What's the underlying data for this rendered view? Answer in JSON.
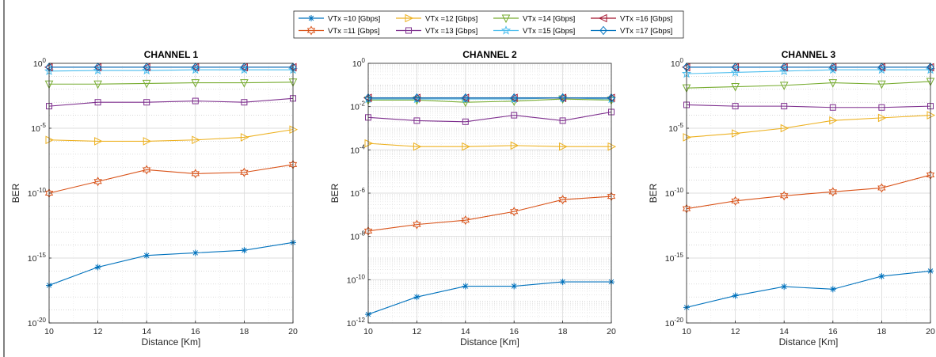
{
  "chart_data": [
    {
      "type": "line",
      "title": "CHANNEL 1",
      "xlabel": "Distance [Km]",
      "ylabel": "BER",
      "x": [
        10,
        12,
        14,
        16,
        18,
        20
      ],
      "xlim": [
        10,
        20
      ],
      "xticks": [
        10,
        12,
        14,
        16,
        18,
        20
      ],
      "ylim_log10": [
        -20,
        0
      ],
      "yticks_log10": [
        0,
        -5,
        -10,
        -15,
        -20
      ],
      "ytick_labels": [
        {
          "base": "10",
          "exp": "0"
        },
        {
          "base": "10",
          "exp": "-5"
        },
        {
          "base": "10",
          "exp": "-10"
        },
        {
          "base": "10",
          "exp": "-15"
        },
        {
          "base": "10",
          "exp": "-20"
        }
      ],
      "yscale": "log",
      "grid": true,
      "minor_grid": false,
      "series_log10": [
        {
          "name": "VTx =10 [Gbps]",
          "values": [
            -17.1,
            -15.7,
            -14.8,
            -14.6,
            -14.4,
            -13.8
          ]
        },
        {
          "name": "VTx =11 [Gbps]",
          "values": [
            -10.0,
            -9.1,
            -8.2,
            -8.5,
            -8.4,
            -7.8
          ]
        },
        {
          "name": "VTx =12 [Gbps]",
          "values": [
            -5.9,
            -6.0,
            -6.0,
            -5.9,
            -5.7,
            -5.1
          ]
        },
        {
          "name": "VTx =13 [Gbps]",
          "values": [
            -3.3,
            -3.0,
            -3.0,
            -2.9,
            -3.0,
            -2.7
          ]
        },
        {
          "name": "VTx =14 [Gbps]",
          "values": [
            -1.6,
            -1.6,
            -1.55,
            -1.5,
            -1.5,
            -1.45
          ]
        },
        {
          "name": "VTx =15 [Gbps]",
          "values": [
            -0.6,
            -0.55,
            -0.55,
            -0.5,
            -0.5,
            -0.5
          ]
        },
        {
          "name": "VTx =16 [Gbps]",
          "values": [
            -0.3,
            -0.3,
            -0.3,
            -0.3,
            -0.3,
            -0.3
          ]
        },
        {
          "name": "VTx =17 [Gbps]",
          "values": [
            -0.3,
            -0.3,
            -0.3,
            -0.3,
            -0.3,
            -0.3
          ]
        }
      ]
    },
    {
      "type": "line",
      "title": "CHANNEL 2",
      "xlabel": "Distance [Km]",
      "ylabel": "BER",
      "x": [
        10,
        12,
        14,
        16,
        18,
        20
      ],
      "xlim": [
        10,
        20
      ],
      "xticks": [
        10,
        12,
        14,
        16,
        18,
        20
      ],
      "ylim_log10": [
        -12,
        0
      ],
      "yticks_log10": [
        0,
        -2,
        -4,
        -6,
        -8,
        -10,
        -12
      ],
      "ytick_labels": [
        {
          "base": "10",
          "exp": "0"
        },
        {
          "base": "10",
          "exp": "-2"
        },
        {
          "base": "10",
          "exp": "-4"
        },
        {
          "base": "10",
          "exp": "-6"
        },
        {
          "base": "10",
          "exp": "-8"
        },
        {
          "base": "10",
          "exp": "-10"
        },
        {
          "base": "10",
          "exp": "-12"
        }
      ],
      "yscale": "log",
      "grid": true,
      "minor_grid": true,
      "series_log10": [
        {
          "name": "VTx =10 [Gbps]",
          "values": [
            -11.6,
            -10.8,
            -10.3,
            -10.3,
            -10.1,
            -10.1
          ]
        },
        {
          "name": "VTx =11 [Gbps]",
          "values": [
            -7.75,
            -7.45,
            -7.25,
            -6.85,
            -6.3,
            -6.15
          ]
        },
        {
          "name": "VTx =12 [Gbps]",
          "values": [
            -3.7,
            -3.85,
            -3.85,
            -3.8,
            -3.85,
            -3.85
          ]
        },
        {
          "name": "VTx =13 [Gbps]",
          "values": [
            -2.5,
            -2.65,
            -2.7,
            -2.4,
            -2.65,
            -2.25
          ]
        },
        {
          "name": "VTx =14 [Gbps]",
          "values": [
            -1.7,
            -1.7,
            -1.8,
            -1.75,
            -1.65,
            -1.7
          ]
        },
        {
          "name": "VTx =15 [Gbps]",
          "values": [
            -1.65,
            -1.65,
            -1.65,
            -1.65,
            -1.6,
            -1.65
          ]
        },
        {
          "name": "VTx =16 [Gbps]",
          "values": [
            -1.6,
            -1.6,
            -1.6,
            -1.6,
            -1.6,
            -1.6
          ]
        },
        {
          "name": "VTx =17 [Gbps]",
          "values": [
            -1.6,
            -1.6,
            -1.6,
            -1.6,
            -1.6,
            -1.6
          ]
        }
      ]
    },
    {
      "type": "line",
      "title": "CHANNEL 3",
      "xlabel": "Distance [Km]",
      "ylabel": "BER",
      "x": [
        10,
        12,
        14,
        16,
        18,
        20
      ],
      "xlim": [
        10,
        20
      ],
      "xticks": [
        10,
        12,
        14,
        16,
        18,
        20
      ],
      "ylim_log10": [
        -20,
        0
      ],
      "yticks_log10": [
        0,
        -5,
        -10,
        -15,
        -20
      ],
      "ytick_labels": [
        {
          "base": "10",
          "exp": "0"
        },
        {
          "base": "10",
          "exp": "-5"
        },
        {
          "base": "10",
          "exp": "-10"
        },
        {
          "base": "10",
          "exp": "-15"
        },
        {
          "base": "10",
          "exp": "-20"
        }
      ],
      "yscale": "log",
      "grid": true,
      "minor_grid": false,
      "series_log10": [
        {
          "name": "VTx =10 [Gbps]",
          "values": [
            -18.8,
            -17.9,
            -17.2,
            -17.4,
            -16.4,
            -16.0
          ]
        },
        {
          "name": "VTx =11 [Gbps]",
          "values": [
            -11.2,
            -10.6,
            -10.2,
            -9.9,
            -9.6,
            -8.6
          ]
        },
        {
          "name": "VTx =12 [Gbps]",
          "values": [
            -5.7,
            -5.4,
            -5.0,
            -4.4,
            -4.2,
            -4.0
          ]
        },
        {
          "name": "VTx =13 [Gbps]",
          "values": [
            -3.2,
            -3.3,
            -3.3,
            -3.4,
            -3.4,
            -3.3
          ]
        },
        {
          "name": "VTx =14 [Gbps]",
          "values": [
            -1.9,
            -1.8,
            -1.7,
            -1.5,
            -1.6,
            -1.4
          ]
        },
        {
          "name": "VTx =15 [Gbps]",
          "values": [
            -0.8,
            -0.7,
            -0.6,
            -0.5,
            -0.5,
            -0.5
          ]
        },
        {
          "name": "VTx =16 [Gbps]",
          "values": [
            -0.3,
            -0.3,
            -0.3,
            -0.3,
            -0.3,
            -0.3
          ]
        },
        {
          "name": "VTx =17 [Gbps]",
          "values": [
            -0.3,
            -0.3,
            -0.3,
            -0.3,
            -0.3,
            -0.3
          ]
        }
      ]
    }
  ],
  "legend": {
    "placement": "top-center",
    "entries": [
      {
        "label": "VTx =10 [Gbps]",
        "color": "#0072BD",
        "marker": "asterisk"
      },
      {
        "label": "VTx =11 [Gbps]",
        "color": "#D95319",
        "marker": "hexagram"
      },
      {
        "label": "VTx =12 [Gbps]",
        "color": "#EDB120",
        "marker": "triangle-right"
      },
      {
        "label": "VTx =13 [Gbps]",
        "color": "#7E2F8E",
        "marker": "square"
      },
      {
        "label": "VTx =14 [Gbps]",
        "color": "#77AC30",
        "marker": "triangle-down"
      },
      {
        "label": "VTx =15 [Gbps]",
        "color": "#4DBEEE",
        "marker": "pentagram"
      },
      {
        "label": "VTx =16 [Gbps]",
        "color": "#A2142F",
        "marker": "triangle-left"
      },
      {
        "label": "VTx =17 [Gbps]",
        "color": "#0072BD",
        "marker": "diamond"
      }
    ]
  }
}
